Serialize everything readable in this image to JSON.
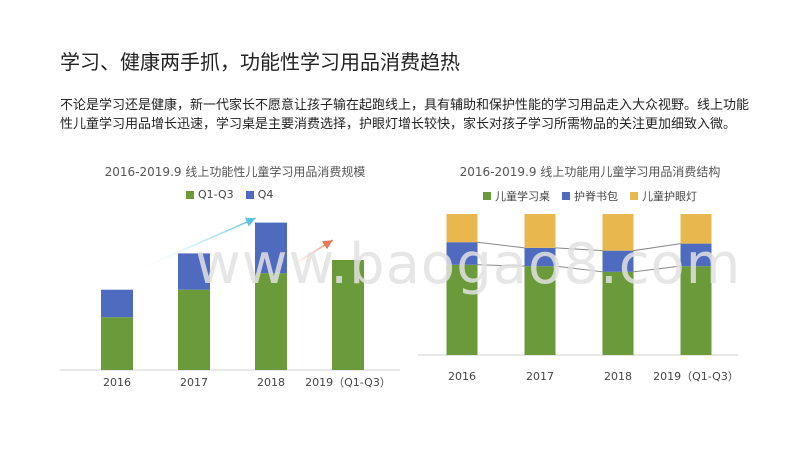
{
  "page": {
    "title": "学习、健康两手抓，功能性学习用品消费趋热",
    "paragraph": "不论是学习还是健康，新一代家长不愿意让孩子输在起跑线上，具有辅助和保护性能的学习用品走入大众视野。线上功能性儿童学习用品增长迅速，学习桌是主要消费选择，护眼灯增长较快，家长对孩子学习所需物品的关注更加细致入微。",
    "watermark": "www.baogao8.com"
  },
  "chart_data": [
    {
      "type": "bar",
      "stacked": true,
      "title": "2016-2019.9 线上功能性儿童学习用品消费规模",
      "categories": [
        "2016",
        "2017",
        "2018",
        "2019（Q1-Q3）"
      ],
      "series": [
        {
          "name": "Q1-Q3",
          "color": "#6a9a3a",
          "values": [
            48,
            73,
            88,
            100
          ]
        },
        {
          "name": "Q4",
          "color": "#4f6bbf",
          "values": [
            25,
            33,
            46,
            0
          ]
        }
      ],
      "ylim": [
        0,
        140
      ],
      "grid": false,
      "legend": "top",
      "annotations": [
        {
          "type": "trend-arrow",
          "color": "#5fc0e0",
          "from": [
            0.3,
            92
          ],
          "to": [
            1.8,
            138
          ]
        },
        {
          "type": "trend-arrow",
          "color": "#e77a5a",
          "from": [
            2.2,
            92
          ],
          "to": [
            2.8,
            118
          ]
        }
      ]
    },
    {
      "type": "bar",
      "stacked": true,
      "percent": true,
      "title": "2016-2019.9 线上功能用儿童学习用品消费结构",
      "categories": [
        "2016",
        "2017",
        "2018",
        "2019（Q1-Q3）"
      ],
      "series": [
        {
          "name": "儿童学习桌",
          "color": "#6a9a3a",
          "values": [
            64,
            63,
            59,
            63
          ]
        },
        {
          "name": "护脊书包",
          "color": "#4f6bbf",
          "values": [
            16,
            13,
            15,
            16
          ]
        },
        {
          "name": "儿童护眼灯",
          "color": "#e8b84f",
          "values": [
            20,
            24,
            26,
            21
          ]
        }
      ],
      "ylim": [
        0,
        100
      ],
      "grid": false,
      "legend": "top",
      "connector_lines": true
    }
  ]
}
